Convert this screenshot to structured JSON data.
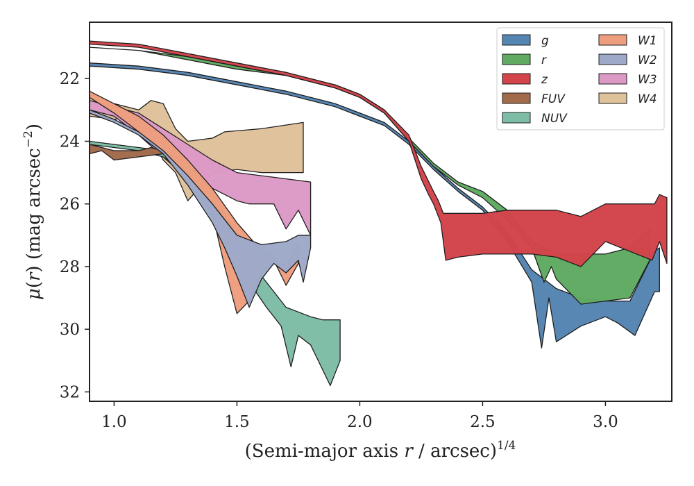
{
  "chart_data": {
    "type": "area",
    "xlabel_parts": [
      {
        "t": "(Semi-major axis ",
        "style": "normal"
      },
      {
        "t": "r",
        "style": "italic"
      },
      {
        "t": " / arcsec)",
        "style": "normal"
      },
      {
        "t": "1/4",
        "style": "sup"
      }
    ],
    "ylabel_parts": [
      {
        "t": "μ",
        "style": "italic"
      },
      {
        "t": "(",
        "style": "normal"
      },
      {
        "t": "r",
        "style": "italic"
      },
      {
        "t": ") (mag arcsec",
        "style": "normal"
      },
      {
        "t": "−2",
        "style": "sup"
      },
      {
        "t": ")",
        "style": "normal"
      }
    ],
    "xlim": [
      0.9,
      3.27
    ],
    "ylim": [
      32.3,
      20.2
    ],
    "y_inverted": true,
    "xticks": [
      1.0,
      1.5,
      2.0,
      2.5,
      3.0
    ],
    "xtick_labels": [
      "1.0",
      "1.5",
      "2.0",
      "2.5",
      "3.0"
    ],
    "yticks": [
      22,
      24,
      26,
      28,
      30,
      32
    ],
    "ytick_labels": [
      "22",
      "24",
      "26",
      "28",
      "30",
      "32"
    ],
    "grid": false,
    "legend_position": "top-right",
    "legend_columns": 2,
    "series": [
      {
        "name": "W4",
        "color": "#dfc29a",
        "upper": [
          [
            0.9,
            22.5
          ],
          [
            1.0,
            22.8
          ],
          [
            1.1,
            23.0
          ],
          [
            1.15,
            22.7
          ],
          [
            1.2,
            22.8
          ],
          [
            1.25,
            23.6
          ],
          [
            1.3,
            24.0
          ],
          [
            1.4,
            23.9
          ],
          [
            1.45,
            23.7
          ],
          [
            1.6,
            23.6
          ],
          [
            1.77,
            23.4
          ]
        ],
        "lower": [
          [
            1.77,
            25.0
          ],
          [
            1.6,
            25.0
          ],
          [
            1.5,
            24.9
          ],
          [
            1.4,
            25.0
          ],
          [
            1.3,
            25.9
          ],
          [
            1.25,
            25.0
          ],
          [
            1.2,
            24.6
          ],
          [
            1.1,
            23.2
          ],
          [
            1.0,
            23.3
          ],
          [
            0.9,
            23.2
          ]
        ]
      },
      {
        "name": "W3",
        "color": "#dc99c6",
        "upper": [
          [
            0.9,
            22.7
          ],
          [
            1.1,
            23.1
          ],
          [
            1.2,
            23.6
          ],
          [
            1.3,
            24.1
          ],
          [
            1.4,
            24.6
          ],
          [
            1.5,
            25.0
          ],
          [
            1.6,
            25.1
          ],
          [
            1.8,
            25.3
          ]
        ],
        "lower": [
          [
            1.8,
            27.0
          ],
          [
            1.75,
            26.2
          ],
          [
            1.7,
            26.8
          ],
          [
            1.65,
            26.0
          ],
          [
            1.6,
            26.0
          ],
          [
            1.55,
            26.0
          ],
          [
            1.5,
            25.9
          ],
          [
            1.45,
            25.7
          ],
          [
            1.4,
            25.5
          ],
          [
            1.3,
            25.2
          ],
          [
            1.2,
            24.5
          ],
          [
            1.1,
            23.8
          ],
          [
            1.0,
            23.2
          ],
          [
            0.9,
            23.0
          ]
        ]
      },
      {
        "name": "NUV",
        "color": "#7dbda6",
        "upper": [
          [
            0.9,
            24.0
          ],
          [
            1.0,
            24.1
          ],
          [
            1.1,
            24.2
          ],
          [
            1.2,
            24.3
          ],
          [
            1.3,
            24.7
          ],
          [
            1.4,
            25.6
          ],
          [
            1.5,
            27.0
          ],
          [
            1.6,
            28.3
          ],
          [
            1.7,
            29.3
          ],
          [
            1.8,
            29.6
          ],
          [
            1.85,
            29.7
          ],
          [
            1.92,
            29.7
          ]
        ],
        "lower": [
          [
            1.92,
            31.0
          ],
          [
            1.88,
            31.8
          ],
          [
            1.8,
            30.5
          ],
          [
            1.75,
            30.2
          ],
          [
            1.72,
            31.2
          ],
          [
            1.68,
            29.9
          ],
          [
            1.62,
            29.3
          ],
          [
            1.55,
            28.5
          ],
          [
            1.45,
            26.8
          ],
          [
            1.3,
            25.0
          ],
          [
            1.2,
            24.5
          ],
          [
            1.1,
            24.3
          ],
          [
            1.0,
            24.2
          ],
          [
            0.9,
            24.1
          ]
        ]
      },
      {
        "name": "FUV",
        "color": "#a16b4b",
        "upper": [
          [
            0.9,
            24.1
          ],
          [
            1.0,
            24.3
          ],
          [
            1.1,
            24.3
          ],
          [
            1.15,
            24.2
          ],
          [
            1.2,
            24.3
          ]
        ],
        "lower": [
          [
            1.2,
            24.4
          ],
          [
            1.1,
            24.5
          ],
          [
            1.0,
            24.6
          ],
          [
            0.95,
            24.3
          ],
          [
            0.9,
            24.4
          ]
        ]
      },
      {
        "name": "W1",
        "color": "#ee9e7e",
        "upper": [
          [
            0.9,
            22.4
          ],
          [
            1.0,
            22.8
          ],
          [
            1.1,
            23.2
          ],
          [
            1.2,
            23.8
          ],
          [
            1.3,
            24.6
          ],
          [
            1.4,
            25.5
          ],
          [
            1.5,
            26.6
          ],
          [
            1.6,
            27.5
          ],
          [
            1.7,
            28.0
          ],
          [
            1.75,
            27.3
          ]
        ],
        "lower": [
          [
            1.75,
            27.9
          ],
          [
            1.7,
            28.6
          ],
          [
            1.65,
            27.8
          ],
          [
            1.6,
            28.2
          ],
          [
            1.55,
            29.1
          ],
          [
            1.5,
            29.5
          ],
          [
            1.45,
            28.0
          ],
          [
            1.4,
            26.3
          ],
          [
            1.3,
            25.3
          ],
          [
            1.2,
            24.4
          ],
          [
            1.1,
            23.7
          ],
          [
            1.0,
            23.1
          ],
          [
            0.9,
            22.6
          ]
        ]
      },
      {
        "name": "W2",
        "color": "#9ea9c9",
        "upper": [
          [
            0.9,
            23.0
          ],
          [
            1.0,
            23.3
          ],
          [
            1.1,
            23.7
          ],
          [
            1.2,
            24.3
          ],
          [
            1.3,
            25.1
          ],
          [
            1.4,
            26.0
          ],
          [
            1.5,
            27.0
          ],
          [
            1.6,
            27.3
          ],
          [
            1.7,
            27.2
          ],
          [
            1.75,
            27.0
          ],
          [
            1.8,
            27.0
          ]
        ],
        "lower": [
          [
            1.8,
            27.4
          ],
          [
            1.77,
            28.5
          ],
          [
            1.75,
            27.8
          ],
          [
            1.7,
            28.2
          ],
          [
            1.65,
            27.9
          ],
          [
            1.6,
            28.4
          ],
          [
            1.55,
            29.3
          ],
          [
            1.5,
            28.3
          ],
          [
            1.45,
            27.4
          ],
          [
            1.4,
            26.6
          ],
          [
            1.3,
            25.4
          ],
          [
            1.2,
            24.4
          ],
          [
            1.1,
            23.8
          ],
          [
            1.0,
            23.4
          ],
          [
            0.9,
            23.1
          ]
        ]
      },
      {
        "name": "g",
        "color": "#5585b3",
        "upper": [
          [
            0.9,
            21.5
          ],
          [
            1.1,
            21.6
          ],
          [
            1.3,
            21.8
          ],
          [
            1.5,
            22.1
          ],
          [
            1.7,
            22.4
          ],
          [
            1.9,
            22.8
          ],
          [
            2.1,
            23.4
          ],
          [
            2.2,
            24.0
          ],
          [
            2.3,
            24.8
          ],
          [
            2.4,
            25.5
          ],
          [
            2.5,
            26.1
          ],
          [
            2.6,
            26.9
          ],
          [
            2.7,
            28.1
          ],
          [
            2.8,
            28.7
          ],
          [
            2.9,
            29.0
          ],
          [
            3.0,
            29.1
          ],
          [
            3.1,
            29.1
          ],
          [
            3.2,
            27.5
          ],
          [
            3.22,
            27.4
          ]
        ],
        "lower": [
          [
            3.22,
            28.8
          ],
          [
            3.2,
            28.8
          ],
          [
            3.12,
            30.2
          ],
          [
            3.05,
            29.8
          ],
          [
            3.0,
            29.6
          ],
          [
            2.9,
            29.9
          ],
          [
            2.8,
            30.4
          ],
          [
            2.77,
            29.0
          ],
          [
            2.74,
            30.6
          ],
          [
            2.7,
            28.5
          ],
          [
            2.6,
            27.2
          ],
          [
            2.5,
            26.2
          ],
          [
            2.4,
            25.6
          ],
          [
            2.3,
            24.9
          ],
          [
            2.2,
            24.1
          ],
          [
            2.1,
            23.5
          ],
          [
            1.9,
            22.9
          ],
          [
            1.7,
            22.5
          ],
          [
            1.5,
            22.2
          ],
          [
            1.3,
            21.9
          ],
          [
            1.1,
            21.7
          ],
          [
            0.9,
            21.6
          ]
        ]
      },
      {
        "name": "r",
        "color": "#60aa62",
        "upper": [
          [
            0.9,
            21.0
          ],
          [
            1.1,
            21.1
          ],
          [
            1.3,
            21.3
          ],
          [
            1.5,
            21.6
          ],
          [
            1.7,
            21.9
          ],
          [
            1.9,
            22.2
          ],
          [
            2.0,
            22.5
          ],
          [
            2.1,
            23.0
          ],
          [
            2.2,
            23.9
          ],
          [
            2.3,
            24.7
          ],
          [
            2.4,
            25.3
          ],
          [
            2.5,
            25.6
          ],
          [
            2.6,
            26.2
          ],
          [
            2.7,
            27.2
          ],
          [
            2.8,
            27.6
          ],
          [
            2.9,
            27.6
          ],
          [
            3.0,
            27.6
          ],
          [
            3.1,
            27.4
          ],
          [
            3.18,
            26.8
          ]
        ],
        "lower": [
          [
            3.18,
            27.8
          ],
          [
            3.1,
            29.0
          ],
          [
            3.0,
            29.1
          ],
          [
            2.9,
            29.2
          ],
          [
            2.8,
            28.4
          ],
          [
            2.78,
            28.0
          ],
          [
            2.75,
            28.5
          ],
          [
            2.7,
            27.4
          ],
          [
            2.6,
            26.5
          ],
          [
            2.5,
            25.8
          ],
          [
            2.4,
            25.4
          ],
          [
            2.3,
            24.8
          ],
          [
            2.2,
            24.0
          ],
          [
            2.1,
            23.1
          ],
          [
            2.0,
            22.6
          ],
          [
            1.9,
            22.3
          ],
          [
            1.7,
            21.9
          ],
          [
            1.5,
            21.7
          ],
          [
            1.3,
            21.4
          ],
          [
            1.1,
            21.1
          ],
          [
            0.9,
            21.0
          ]
        ]
      },
      {
        "name": "z",
        "color": "#d2434a",
        "upper": [
          [
            0.9,
            20.8
          ],
          [
            1.1,
            20.9
          ],
          [
            1.3,
            21.2
          ],
          [
            1.5,
            21.5
          ],
          [
            1.7,
            21.8
          ],
          [
            1.9,
            22.2
          ],
          [
            2.0,
            22.5
          ],
          [
            2.1,
            23.0
          ],
          [
            2.2,
            23.8
          ],
          [
            2.25,
            24.8
          ],
          [
            2.3,
            25.6
          ],
          [
            2.32,
            25.9
          ],
          [
            2.34,
            26.3
          ],
          [
            2.5,
            26.3
          ],
          [
            2.6,
            26.2
          ],
          [
            2.8,
            26.2
          ],
          [
            2.9,
            26.4
          ],
          [
            3.0,
            26.0
          ],
          [
            3.2,
            26.0
          ],
          [
            3.22,
            25.7
          ],
          [
            3.25,
            25.8
          ]
        ],
        "lower": [
          [
            3.25,
            27.9
          ],
          [
            3.22,
            27.2
          ],
          [
            3.19,
            27.8
          ],
          [
            3.0,
            27.2
          ],
          [
            2.9,
            28.0
          ],
          [
            2.8,
            27.7
          ],
          [
            2.7,
            27.6
          ],
          [
            2.6,
            27.6
          ],
          [
            2.5,
            27.6
          ],
          [
            2.4,
            27.7
          ],
          [
            2.35,
            27.8
          ],
          [
            2.33,
            26.6
          ],
          [
            2.3,
            26.0
          ],
          [
            2.28,
            25.7
          ],
          [
            2.25,
            25.2
          ],
          [
            2.2,
            24.0
          ],
          [
            2.1,
            23.1
          ],
          [
            2.0,
            22.6
          ],
          [
            1.9,
            22.3
          ],
          [
            1.7,
            21.9
          ],
          [
            1.5,
            21.6
          ],
          [
            1.3,
            21.3
          ],
          [
            1.1,
            21.0
          ],
          [
            0.9,
            20.9
          ]
        ]
      }
    ],
    "legend_order": [
      "g",
      "r",
      "z",
      "FUV",
      "NUV",
      "W1",
      "W2",
      "W3",
      "W4"
    ]
  }
}
